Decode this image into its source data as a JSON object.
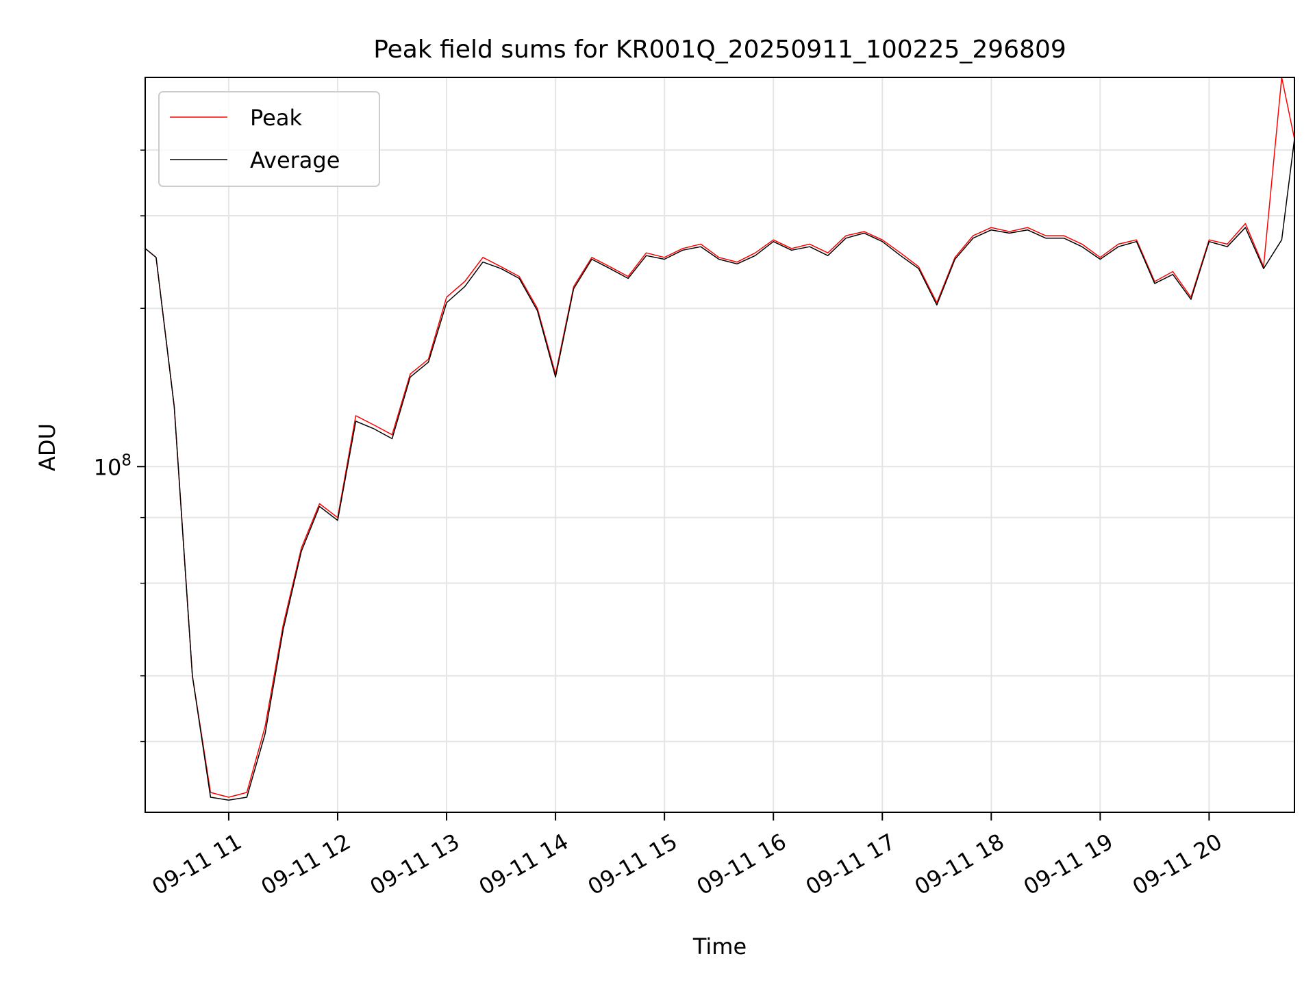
{
  "chart_data": {
    "type": "line",
    "title": "Peak field sums for KR001Q_20250911_100225_296809",
    "xlabel": "Time",
    "ylabel": "ADU",
    "y_scale": "log",
    "ytick_labels": [
      {
        "base": "10",
        "exp": "8",
        "value": 100000000
      }
    ],
    "ylim": [
      22000000,
      550000000
    ],
    "xlim": [
      "2025-09-11 10:14",
      "2025-09-11 20:47"
    ],
    "xtick_labels": [
      "09-11 11",
      "09-11 12",
      "09-11 13",
      "09-11 14",
      "09-11 15",
      "09-11 16",
      "09-11 17",
      "09-11 18",
      "09-11 19",
      "09-11 20"
    ],
    "xtick_values": [
      "2025-09-11 11:00",
      "2025-09-11 12:00",
      "2025-09-11 13:00",
      "2025-09-11 14:00",
      "2025-09-11 15:00",
      "2025-09-11 16:00",
      "2025-09-11 17:00",
      "2025-09-11 18:00",
      "2025-09-11 19:00",
      "2025-09-11 20:00"
    ],
    "grid": true,
    "legend_position": "top-left",
    "x": [
      "2025-09-11 10:14",
      "2025-09-11 10:20",
      "2025-09-11 10:30",
      "2025-09-11 10:40",
      "2025-09-11 10:50",
      "2025-09-11 11:00",
      "2025-09-11 11:10",
      "2025-09-11 11:20",
      "2025-09-11 11:30",
      "2025-09-11 11:40",
      "2025-09-11 11:50",
      "2025-09-11 12:00",
      "2025-09-11 12:10",
      "2025-09-11 12:20",
      "2025-09-11 12:30",
      "2025-09-11 12:40",
      "2025-09-11 12:50",
      "2025-09-11 13:00",
      "2025-09-11 13:10",
      "2025-09-11 13:20",
      "2025-09-11 13:30",
      "2025-09-11 13:40",
      "2025-09-11 13:50",
      "2025-09-11 14:00",
      "2025-09-11 14:10",
      "2025-09-11 14:20",
      "2025-09-11 14:30",
      "2025-09-11 14:40",
      "2025-09-11 14:50",
      "2025-09-11 15:00",
      "2025-09-11 15:10",
      "2025-09-11 15:20",
      "2025-09-11 15:30",
      "2025-09-11 15:40",
      "2025-09-11 15:50",
      "2025-09-11 16:00",
      "2025-09-11 16:10",
      "2025-09-11 16:20",
      "2025-09-11 16:30",
      "2025-09-11 16:40",
      "2025-09-11 16:50",
      "2025-09-11 17:00",
      "2025-09-11 17:10",
      "2025-09-11 17:20",
      "2025-09-11 17:30",
      "2025-09-11 17:40",
      "2025-09-11 17:50",
      "2025-09-11 18:00",
      "2025-09-11 18:10",
      "2025-09-11 18:20",
      "2025-09-11 18:30",
      "2025-09-11 18:40",
      "2025-09-11 18:50",
      "2025-09-11 19:00",
      "2025-09-11 19:10",
      "2025-09-11 19:20",
      "2025-09-11 19:30",
      "2025-09-11 19:40",
      "2025-09-11 19:50",
      "2025-09-11 20:00",
      "2025-09-11 20:10",
      "2025-09-11 20:20",
      "2025-09-11 20:30",
      "2025-09-11 20:40",
      "2025-09-11 20:47"
    ],
    "series": [
      {
        "name": "Peak",
        "color": "#ff0000",
        "values": [
          260000000,
          250000000,
          130000000,
          40000000,
          24000000,
          23500000,
          24000000,
          32000000,
          50000000,
          70000000,
          85000000,
          80000000,
          125000000,
          120000000,
          115000000,
          150000000,
          160000000,
          210000000,
          225000000,
          250000000,
          240000000,
          230000000,
          200000000,
          150000000,
          220000000,
          250000000,
          240000000,
          230000000,
          255000000,
          250000000,
          260000000,
          265000000,
          250000000,
          245000000,
          255000000,
          270000000,
          260000000,
          265000000,
          255000000,
          275000000,
          280000000,
          270000000,
          255000000,
          240000000,
          205000000,
          250000000,
          275000000,
          285000000,
          280000000,
          285000000,
          275000000,
          275000000,
          265000000,
          250000000,
          265000000,
          270000000,
          225000000,
          235000000,
          210000000,
          270000000,
          265000000,
          290000000,
          240000000,
          550000000,
          420000000
        ]
      },
      {
        "name": "Average",
        "color": "#000000",
        "values": [
          260000000,
          250000000,
          130000000,
          40000000,
          23500000,
          23200000,
          23500000,
          31000000,
          49000000,
          69000000,
          84000000,
          79000000,
          122000000,
          118000000,
          113000000,
          148000000,
          158000000,
          205000000,
          220000000,
          245000000,
          238000000,
          228000000,
          198000000,
          148000000,
          218000000,
          248000000,
          238000000,
          228000000,
          252000000,
          248000000,
          258000000,
          262000000,
          248000000,
          243000000,
          252000000,
          268000000,
          258000000,
          262000000,
          252000000,
          272000000,
          278000000,
          268000000,
          252000000,
          238000000,
          203000000,
          248000000,
          272000000,
          282000000,
          278000000,
          282000000,
          272000000,
          272000000,
          262000000,
          248000000,
          262000000,
          268000000,
          223000000,
          232000000,
          208000000,
          268000000,
          262000000,
          285000000,
          238000000,
          270000000,
          420000000
        ]
      }
    ]
  }
}
